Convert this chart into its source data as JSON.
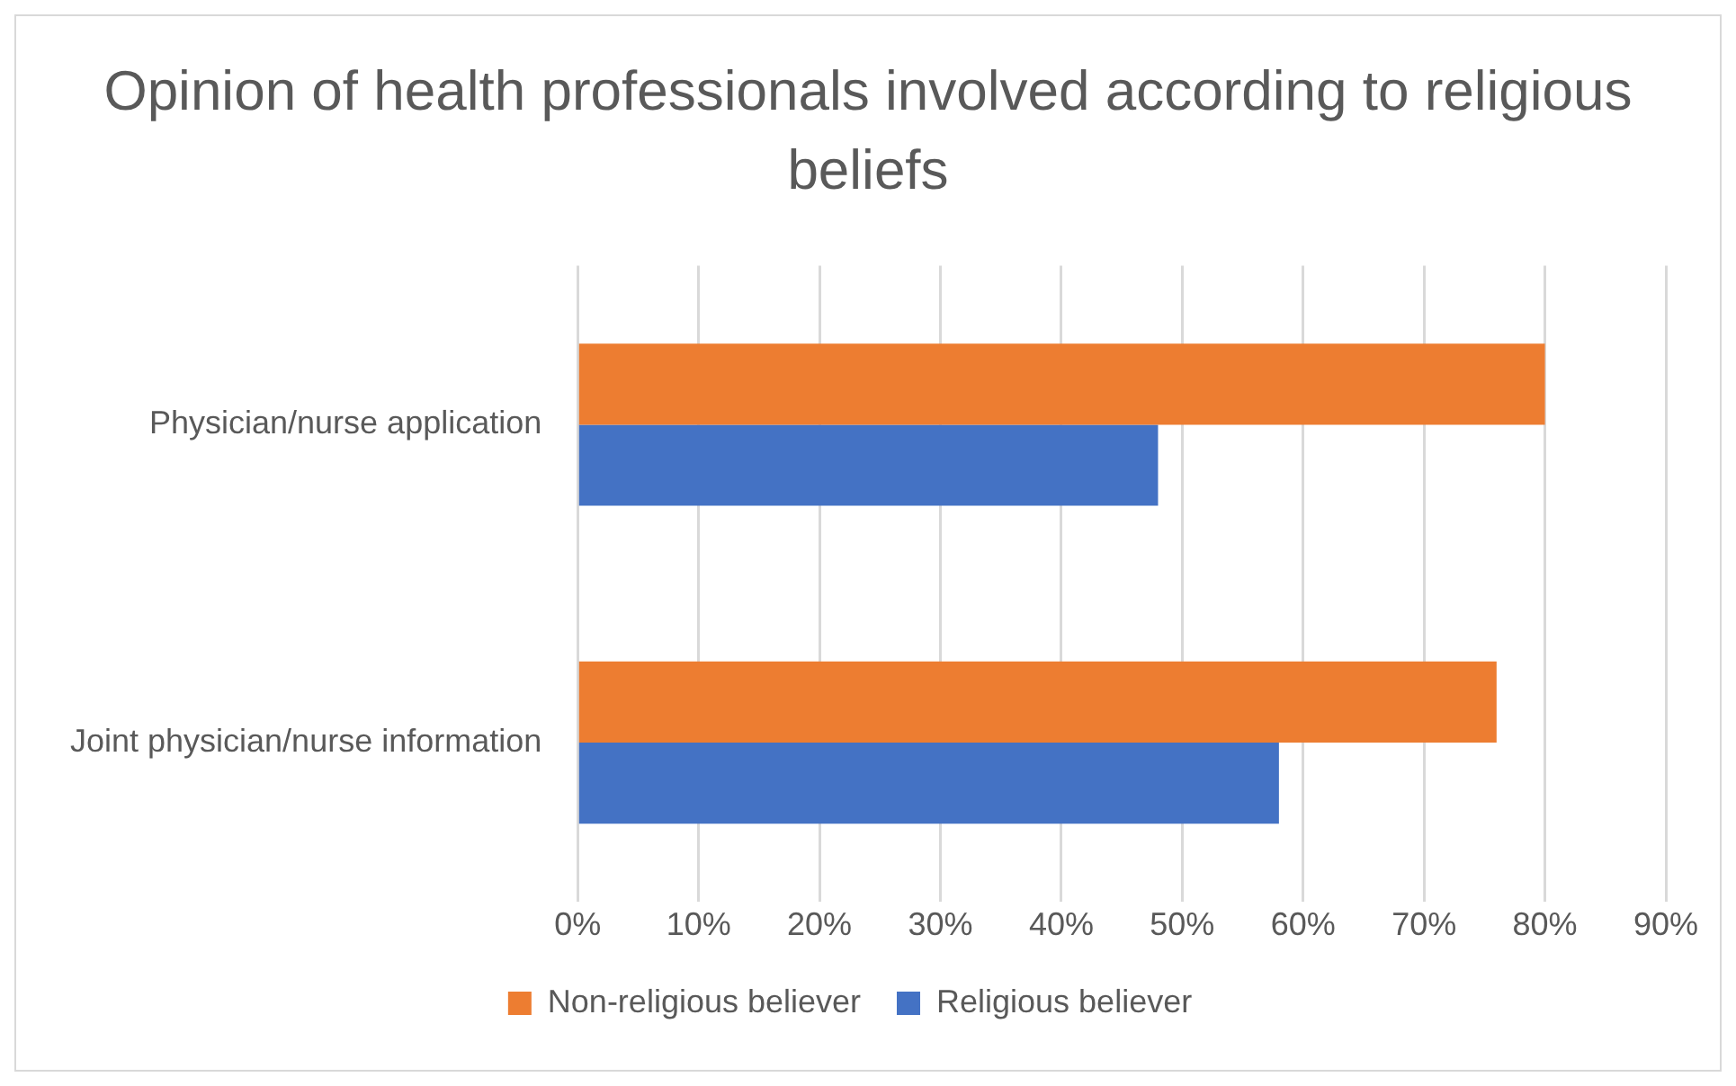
{
  "chart_data": {
    "type": "bar",
    "orientation": "horizontal",
    "title": "Opinion of health professionals involved according to religious beliefs",
    "categories": [
      "Physician/nurse application",
      "Joint physician/nurse information"
    ],
    "series": [
      {
        "name": "Non-religious believer",
        "color": "#ed7d31",
        "values": [
          80,
          76
        ]
      },
      {
        "name": "Religious believer",
        "color": "#4472c4",
        "values": [
          48,
          58
        ]
      }
    ],
    "xlim": [
      0,
      90
    ],
    "xticks": [
      {
        "value": 0,
        "label": "0%"
      },
      {
        "value": 10,
        "label": "10%"
      },
      {
        "value": 20,
        "label": "20%"
      },
      {
        "value": 30,
        "label": "30%"
      },
      {
        "value": 40,
        "label": "40%"
      },
      {
        "value": 50,
        "label": "50%"
      },
      {
        "value": 60,
        "label": "60%"
      },
      {
        "value": 70,
        "label": "70%"
      },
      {
        "value": 80,
        "label": "80%"
      },
      {
        "value": 90,
        "label": "90%"
      }
    ],
    "grid": "x",
    "legend": "bottom"
  }
}
